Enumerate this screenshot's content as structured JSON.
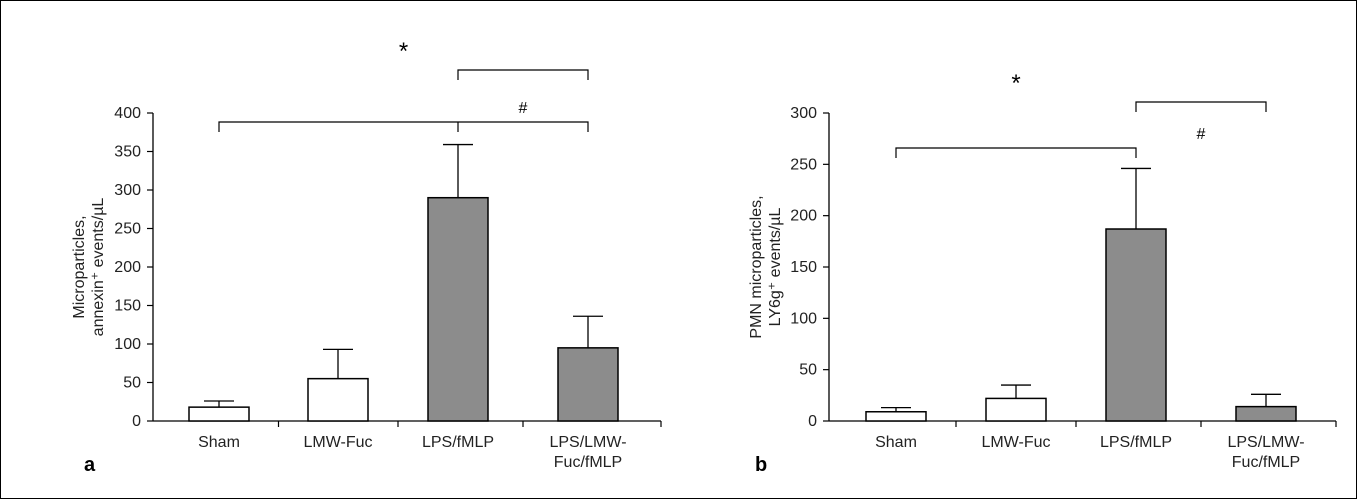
{
  "chart_data": [
    {
      "type": "bar",
      "panel_label": "a",
      "categories": [
        [
          "Sham"
        ],
        [
          "LMW-Fuc"
        ],
        [
          "LPS/fMLP"
        ],
        [
          "LPS/LMW-",
          "Fuc/fMLP"
        ]
      ],
      "values": [
        18,
        55,
        290,
        95
      ],
      "errors": [
        8,
        38,
        69,
        41
      ],
      "bar_colors": [
        "#ffffff",
        "#ffffff",
        "#8c8c8c",
        "#8c8c8c"
      ],
      "ylabel": [
        "Microparticles,",
        "annexin⁺ events/µL"
      ],
      "ylim": [
        0,
        400
      ],
      "yticks": [
        0,
        50,
        100,
        150,
        200,
        250,
        300,
        350,
        400
      ],
      "significance": [
        {
          "symbol": "*",
          "from": 0,
          "to": 3,
          "mid": 2,
          "level": 1
        },
        {
          "symbol": "#",
          "from": 2,
          "to": 3,
          "level": 0
        }
      ]
    },
    {
      "type": "bar",
      "panel_label": "b",
      "categories": [
        [
          "Sham"
        ],
        [
          "LMW-Fuc"
        ],
        [
          "LPS/fMLP"
        ],
        [
          "LPS/LMW-",
          "Fuc/fMLP"
        ]
      ],
      "values": [
        9,
        22,
        187,
        14
      ],
      "errors": [
        4,
        13,
        59,
        12
      ],
      "bar_colors": [
        "#ffffff",
        "#ffffff",
        "#8c8c8c",
        "#8c8c8c"
      ],
      "ylabel": [
        "PMN microparticles,",
        "LY6g⁺ events/µL"
      ],
      "ylim": [
        0,
        300
      ],
      "yticks": [
        0,
        50,
        100,
        150,
        200,
        250,
        300
      ],
      "significance": [
        {
          "symbol": "*",
          "from": 0,
          "to": 2,
          "level": 1
        },
        {
          "symbol": "#",
          "from": 2,
          "to": 3,
          "level": 0
        }
      ]
    }
  ]
}
